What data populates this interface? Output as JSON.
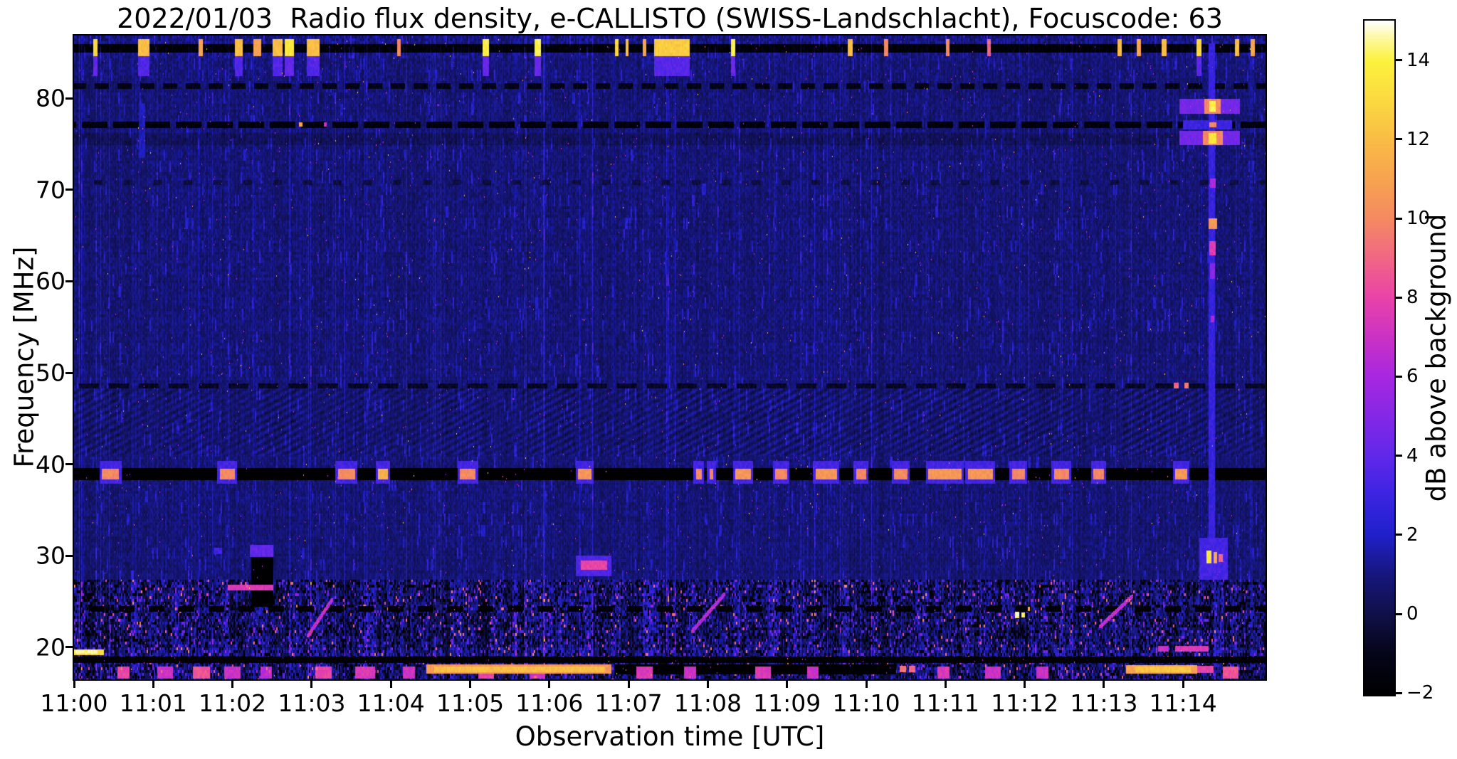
{
  "chart_data": {
    "type": "heatmap",
    "title": "2022/01/03  Radio flux density, e-CALLISTO (SWISS-Landschlacht), Focuscode: 63",
    "xlabel": "Observation time [UTC]",
    "ylabel": "Frequency [MHz]",
    "x_tick_labels": [
      "11:00",
      "11:01",
      "11:02",
      "11:03",
      "11:04",
      "11:05",
      "11:06",
      "11:07",
      "11:08",
      "11:09",
      "11:10",
      "11:11",
      "11:12",
      "11:13",
      "11:14"
    ],
    "x_range_minutes": [
      0,
      15.04
    ],
    "y_tick_values": [
      20,
      30,
      40,
      50,
      60,
      70,
      80
    ],
    "freq_range_mhz": [
      16.5,
      86.85
    ],
    "grid": false,
    "colorbar": {
      "label": "dB above background",
      "tick_values": [
        14,
        12,
        10,
        8,
        6,
        4,
        2,
        0,
        -2
      ],
      "range": [
        -2.05,
        15.0
      ],
      "stops": [
        [
          -2.05,
          "#000002"
        ],
        [
          -1,
          "#05051a"
        ],
        [
          0,
          "#10104a"
        ],
        [
          1,
          "#16167e"
        ],
        [
          2,
          "#2020cb"
        ],
        [
          3,
          "#3c24e2"
        ],
        [
          4,
          "#6128e9"
        ],
        [
          5,
          "#8527e6"
        ],
        [
          6,
          "#a827e0"
        ],
        [
          7,
          "#cb32c4"
        ],
        [
          8,
          "#e943a8"
        ],
        [
          9,
          "#f16784"
        ],
        [
          10,
          "#f48a61"
        ],
        [
          11,
          "#f7a450"
        ],
        [
          12,
          "#f9bc45"
        ],
        [
          13,
          "#fbda40"
        ],
        [
          14,
          "#fcf23d"
        ],
        [
          14.6,
          "#fdf9a8"
        ],
        [
          15,
          "#ffffff"
        ]
      ]
    },
    "seed": 20220103,
    "background": {
      "base": 0.78,
      "noise": 0.55,
      "col_noise": 0.35,
      "row_noise": 0.12
    },
    "bands": [
      {
        "f0": 86.0,
        "f1": 86.85,
        "base": 1.0,
        "noise": 0.8
      },
      {
        "f0": 85.0,
        "f1": 85.95,
        "base": -1.7,
        "noise": 0.5
      },
      {
        "f0": 84.3,
        "f1": 85.0,
        "base": 1.0,
        "noise": 0.7
      },
      {
        "f0": 74.85,
        "f1": 76.2,
        "base": 0.3,
        "noise": 0.5
      },
      {
        "f0": 41.0,
        "f1": 48.3,
        "base": 0.7,
        "noise": 0.5,
        "ripple": 0.55
      },
      {
        "f0": 16.5,
        "f1": 27.4,
        "base": 0.45,
        "noise": 1.9,
        "rough": 1
      },
      {
        "f0": 19.05,
        "f1": 19.95,
        "base": 1.0,
        "noise": 1.8,
        "rough": 1
      }
    ],
    "h_lines": [
      {
        "f0": 81.0,
        "f1": 81.65,
        "v": -1.2,
        "dash": [
          20,
          12
        ],
        "phase": 5
      },
      {
        "f0": 76.75,
        "f1": 77.45,
        "v": -1.6,
        "dash": [
          36,
          8
        ],
        "phase": 11
      },
      {
        "f0": 70.55,
        "f1": 71.05,
        "v": -0.2,
        "dash": [
          12,
          30
        ],
        "phase": 2
      },
      {
        "f0": 48.3,
        "f1": 48.85,
        "v": -0.8,
        "dash": [
          28,
          14
        ],
        "phase": 17
      },
      {
        "f0": 38.25,
        "f1": 39.55,
        "v": -2.3,
        "dash": null,
        "phase": 0
      },
      {
        "f0": 23.9,
        "f1": 24.5,
        "v": -1.9,
        "dash": [
          22,
          20
        ],
        "phase": 9
      },
      {
        "f0": 18.3,
        "f1": 18.95,
        "v": -2.1,
        "dash": null,
        "phase": 0
      }
    ],
    "top_band_bursts": [
      [
        0.27,
        0.06,
        13,
        1
      ],
      [
        0.88,
        0.14,
        12,
        1
      ],
      [
        1.6,
        0.05,
        11,
        0
      ],
      [
        2.08,
        0.1,
        12,
        1
      ],
      [
        2.31,
        0.1,
        11,
        0
      ],
      [
        2.57,
        0.12,
        12,
        1
      ],
      [
        2.72,
        0.12,
        13.5,
        1
      ],
      [
        3.02,
        0.16,
        12,
        1
      ],
      [
        4.1,
        0.05,
        10,
        0
      ],
      [
        5.2,
        0.08,
        14,
        1
      ],
      [
        5.85,
        0.08,
        14,
        1
      ],
      [
        6.85,
        0.04,
        13,
        0
      ],
      [
        6.98,
        0.04,
        12,
        0
      ],
      [
        7.2,
        0.05,
        11,
        0
      ],
      [
        7.55,
        0.45,
        12.5,
        1
      ],
      [
        8.32,
        0.05,
        14,
        1
      ],
      [
        9.8,
        0.06,
        12,
        0
      ],
      [
        10.25,
        0.05,
        10,
        0
      ],
      [
        11.03,
        0.05,
        10,
        0
      ],
      [
        11.55,
        0.04,
        9,
        0
      ],
      [
        13.2,
        0.05,
        12,
        0
      ],
      [
        13.44,
        0.05,
        11,
        0
      ],
      [
        13.76,
        0.06,
        12,
        0
      ],
      [
        14.2,
        0.07,
        13,
        1
      ],
      [
        14.68,
        0.05,
        12,
        0
      ],
      [
        14.88,
        0.05,
        11,
        0
      ]
    ],
    "line40_bursts": [
      [
        0.35,
        0.57,
        10
      ],
      [
        1.84,
        2.03,
        10
      ],
      [
        3.33,
        3.55,
        10
      ],
      [
        3.84,
        3.96,
        11.5
      ],
      [
        4.87,
        5.07,
        10
      ],
      [
        6.36,
        6.53,
        10.5
      ],
      [
        7.85,
        7.92,
        10
      ],
      [
        8.02,
        8.07,
        10
      ],
      [
        8.35,
        8.54,
        10.5
      ],
      [
        8.85,
        9.0,
        10
      ],
      [
        9.36,
        9.63,
        10.5
      ],
      [
        9.87,
        10.0,
        10
      ],
      [
        10.35,
        10.52,
        10
      ],
      [
        10.78,
        11.2,
        10.5
      ],
      [
        11.28,
        11.6,
        10.5
      ],
      [
        11.84,
        12.0,
        10
      ],
      [
        12.37,
        12.56,
        10
      ],
      [
        12.87,
        13.0,
        10
      ],
      [
        13.9,
        14.05,
        10.5
      ]
    ],
    "features": [
      [
        2.24,
        2.52,
        24.4,
        29.9,
        -2.2,
        "set"
      ],
      [
        2.22,
        2.52,
        29.9,
        31.2,
        4
      ],
      [
        1.94,
        2.52,
        26.2,
        26.85,
        7.5
      ],
      [
        1.76,
        1.87,
        30.2,
        30.9,
        3
      ],
      [
        6.33,
        6.78,
        27.8,
        30.0,
        3.5
      ],
      [
        6.4,
        6.73,
        28.5,
        29.5,
        8
      ],
      [
        11.88,
        11.93,
        23.2,
        23.9,
        14.5
      ],
      [
        11.96,
        12.0,
        23.3,
        23.8,
        14
      ],
      [
        12.04,
        12.07,
        24.0,
        24.4,
        12
      ],
      [
        0.0,
        0.38,
        19.15,
        19.8,
        13
      ],
      [
        0.02,
        0.3,
        19.3,
        19.65,
        14.5
      ],
      [
        13.68,
        13.82,
        19.55,
        20.15,
        7
      ],
      [
        13.9,
        14.32,
        19.55,
        20.15,
        7.5
      ],
      [
        4.45,
        6.78,
        17.15,
        18.1,
        10.5
      ],
      [
        4.55,
        6.7,
        17.3,
        17.9,
        12
      ],
      [
        6.82,
        10.38,
        17.05,
        18.15,
        -2.1,
        "set"
      ],
      [
        13.28,
        14.18,
        17.15,
        18.05,
        11
      ],
      [
        13.4,
        14.1,
        17.3,
        17.9,
        12.3
      ],
      [
        14.18,
        14.38,
        17.2,
        18.0,
        8
      ],
      [
        10.42,
        10.5,
        17.3,
        17.95,
        9.5
      ],
      [
        10.54,
        10.62,
        17.3,
        17.95,
        9
      ],
      [
        2.84,
        2.88,
        76.9,
        77.4,
        11
      ],
      [
        3.15,
        3.19,
        76.9,
        77.4,
        7
      ],
      [
        0.82,
        0.9,
        73.5,
        79.5,
        1.8
      ]
    ],
    "diagonals": [
      [
        2.95,
        21.3,
        3.25,
        25.2,
        7
      ],
      [
        7.8,
        21.8,
        8.2,
        25.8,
        6.5
      ],
      [
        12.95,
        22.3,
        13.35,
        25.6,
        7
      ]
    ],
    "bottom_bursts": [
      [
        0.55,
        0.7,
        8
      ],
      [
        1.05,
        1.25,
        7
      ],
      [
        1.5,
        1.72,
        8.5
      ],
      [
        1.9,
        2.1,
        7
      ],
      [
        2.35,
        2.5,
        6.5
      ],
      [
        3.05,
        3.25,
        8
      ],
      [
        3.55,
        3.8,
        7.5
      ],
      [
        4.15,
        4.3,
        7
      ],
      [
        5.1,
        5.3,
        8
      ],
      [
        5.75,
        5.95,
        7
      ],
      [
        7.1,
        7.3,
        7.5
      ],
      [
        7.7,
        7.85,
        7
      ],
      [
        8.6,
        8.8,
        7.5
      ],
      [
        9.25,
        9.4,
        7
      ],
      [
        10.9,
        11.05,
        7.5
      ],
      [
        11.5,
        11.7,
        7
      ],
      [
        12.15,
        12.3,
        7
      ],
      [
        14.5,
        14.7,
        8.5
      ]
    ],
    "event_1114": [
      [
        14.32,
        14.405,
        28.5,
        86.0,
        2.8
      ],
      [
        13.95,
        14.72,
        78.3,
        79.9,
        4.5
      ],
      [
        14.27,
        14.47,
        78.3,
        79.9,
        10
      ],
      [
        14.33,
        14.41,
        78.5,
        79.7,
        14
      ],
      [
        13.95,
        14.72,
        74.9,
        76.4,
        4.5
      ],
      [
        14.25,
        14.5,
        74.9,
        76.4,
        10
      ],
      [
        14.32,
        14.42,
        75.0,
        76.2,
        13.5
      ],
      [
        14.0,
        14.62,
        76.6,
        77.6,
        3
      ],
      [
        14.33,
        14.42,
        76.8,
        77.4,
        10
      ],
      [
        14.34,
        14.41,
        70.2,
        71.2,
        6
      ],
      [
        14.32,
        14.43,
        65.7,
        66.9,
        10.5
      ],
      [
        14.33,
        14.41,
        62.8,
        64.4,
        7.5
      ],
      [
        14.34,
        14.4,
        60.3,
        62.0,
        5
      ],
      [
        14.35,
        14.39,
        55.5,
        56.2,
        6
      ],
      [
        14.2,
        14.56,
        27.4,
        32.0,
        3.2
      ],
      [
        14.29,
        14.36,
        29.2,
        30.6,
        13.5
      ],
      [
        14.38,
        14.43,
        29.2,
        30.4,
        11
      ],
      [
        14.45,
        14.5,
        29.3,
        30.2,
        9
      ],
      [
        13.88,
        13.94,
        48.3,
        48.95,
        9
      ],
      [
        14.02,
        14.07,
        48.3,
        48.95,
        9.5
      ]
    ],
    "speckles": {
      "count_soft": 1900,
      "count_bright": 380
    }
  }
}
